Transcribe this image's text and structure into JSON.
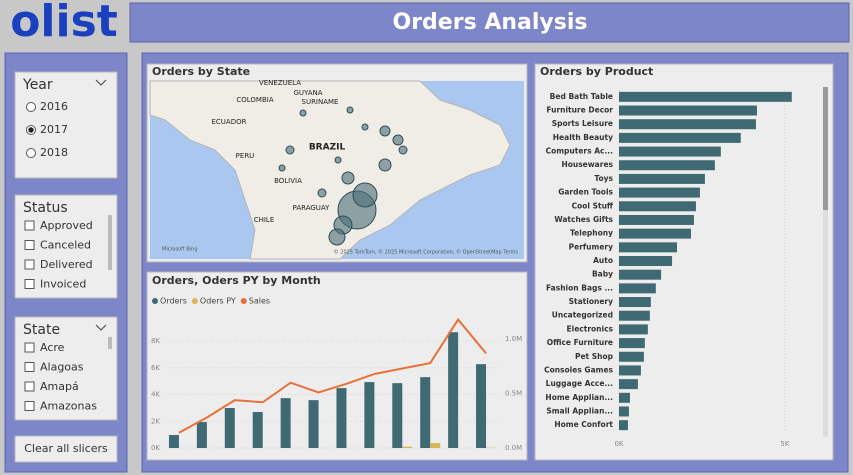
{
  "header": {
    "logo": "olist",
    "title": "Orders Analysis"
  },
  "slicers": [
    {
      "title": "Year",
      "options": [
        "2016",
        "2017",
        "2018"
      ],
      "selected_index": 1
    },
    {
      "title": "Status",
      "options": [
        "Approved",
        "Canceled",
        "Delivered",
        "Invoiced"
      ]
    },
    {
      "title": "State",
      "options": [
        "Acre",
        "Alagoas",
        "Amapá",
        "Amazonas"
      ]
    }
  ],
  "clear_button": "Clear all slicers",
  "map": {
    "title": "Orders by State",
    "labels": [
      "VENEZUELA",
      "GUYANA",
      "SURINAME",
      "COLOMBIA",
      "ECUADOR",
      "PERU",
      "BRAZIL",
      "BOLIVIA",
      "PARAGUAY",
      "CHILE"
    ],
    "attribution": "Microsoft Bing",
    "copyright": "© 2025 TomTom, © 2025 Microsoft Corporation, © OpenStreetMap Terms"
  },
  "chart_data": [
    {
      "type": "combo",
      "title": "Orders, Oders PY by Month",
      "categories": [
        null,
        null,
        null,
        null,
        null,
        null,
        null,
        null,
        null,
        null,
        null,
        null
      ],
      "series": [
        {
          "name": "Orders",
          "color": "#3f6a73",
          "type": "bar",
          "values": [
            970,
            1940,
            2990,
            2690,
            3730,
            3580,
            4480,
            4930,
            4850,
            5300,
            8660,
            6270
          ]
        },
        {
          "name": "Oders PY",
          "color": "#d9b65a",
          "type": "bar",
          "values": [
            null,
            null,
            null,
            null,
            null,
            null,
            null,
            null,
            100,
            370,
            null,
            20
          ]
        },
        {
          "name": "Sales",
          "color": "#e8703a",
          "type": "line",
          "axis": "y2",
          "values": [
            140000,
            280000,
            440000,
            420000,
            600000,
            510000,
            590000,
            680000,
            730000,
            780000,
            1180000,
            870000
          ]
        }
      ],
      "ylim": [
        0,
        9200
      ],
      "yticks": [
        {
          "value": 0,
          "label": "0K"
        },
        {
          "value": 2000,
          "label": "2K"
        },
        {
          "value": 4000,
          "label": "4K"
        },
        {
          "value": 6000,
          "label": "6K"
        },
        {
          "value": 8000,
          "label": "8K"
        }
      ],
      "y2lim": [
        0,
        1130000
      ],
      "y2ticks": [
        {
          "value": 0,
          "label": "0.0M"
        },
        {
          "value": 500000,
          "label": "0.5M"
        },
        {
          "value": 1000000,
          "label": "1.0M"
        }
      ],
      "legend": "top-left",
      "grid": true
    },
    {
      "type": "hbar",
      "title": "Orders by Product",
      "categories": [
        "Bed Bath Table",
        "Furniture Decor",
        "Sports Leisure",
        "Health Beauty",
        "Computers Ac...",
        "Housewares",
        "Toys",
        "Garden Tools",
        "Cool Stuff",
        "Watches Gifts",
        "Telephony",
        "Perfumery",
        "Auto",
        "Baby",
        "Fashion Bags ...",
        "Stationery",
        "Uncategorized",
        "Electronics",
        "Office Furniture",
        "Pet Shop",
        "Consoles Games",
        "Luggage Acce...",
        "Home Applian...",
        "Small Applian...",
        "Home Confort"
      ],
      "values": [
        5210,
        4160,
        4130,
        3670,
        3070,
        2890,
        2590,
        2440,
        2320,
        2260,
        2170,
        1750,
        1600,
        1270,
        1110,
        960,
        930,
        870,
        780,
        750,
        660,
        570,
        330,
        300,
        270
      ],
      "color": "#3f6a73",
      "xlim": [
        0,
        6000
      ],
      "xticks": [
        {
          "value": 0,
          "label": "0K"
        },
        {
          "value": 5000,
          "label": "5K"
        }
      ],
      "grid": true
    }
  ]
}
